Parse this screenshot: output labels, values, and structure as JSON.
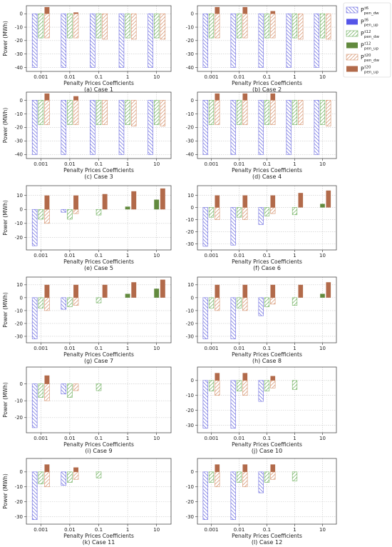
{
  "chart_data": {
    "type": "bar",
    "categories": [
      "0.001",
      "0.01",
      "0.1",
      "1",
      "10"
    ],
    "xlabel": "Penalty Prices Coefficients",
    "ylabel": "Power (MWh)",
    "legend": {
      "placement": "right",
      "entries": [
        {
          "main": "P",
          "sub": "pen_dw",
          "sup": "t6",
          "color": "#6a6ae0",
          "style": "hatch"
        },
        {
          "main": "P",
          "sub": "pen_up",
          "sup": "t6",
          "color": "#5555e8",
          "style": "solid"
        },
        {
          "main": "P",
          "sub": "pen_dw",
          "sup": "t12",
          "color": "#6bae5a",
          "style": "hatch"
        },
        {
          "main": "P",
          "sub": "pen_up",
          "sup": "t12",
          "color": "#628a3e",
          "style": "solid"
        },
        {
          "main": "P",
          "sub": "pen_dw",
          "sup": "t20",
          "color": "#d4906a",
          "style": "hatch"
        },
        {
          "main": "P",
          "sub": "pen_up",
          "sup": "t20",
          "color": "#b26a4a",
          "style": "solid"
        }
      ]
    },
    "panels": [
      {
        "caption": "(a) Case 1",
        "ylim": [
          -43,
          6
        ],
        "yticks": [
          0,
          -10,
          -20,
          -30,
          -40
        ],
        "dw6": [
          -40,
          -40,
          -40,
          -40,
          -40
        ],
        "up6": [
          0,
          0,
          0,
          0,
          0
        ],
        "dw12": [
          -18,
          -18,
          -18,
          -18,
          -18
        ],
        "up12": [
          0,
          0,
          0,
          0,
          0
        ],
        "dw20": [
          -18,
          -18,
          -19,
          -19,
          -19
        ],
        "up20": [
          5,
          1,
          0,
          0,
          0
        ]
      },
      {
        "caption": "(b) Case 2",
        "ylim": [
          -43,
          6
        ],
        "yticks": [
          0,
          -10,
          -20,
          -30,
          -40
        ],
        "dw6": [
          -40,
          -40,
          -40,
          -40,
          -40
        ],
        "up6": [
          0,
          0,
          0,
          0,
          0
        ],
        "dw12": [
          -18,
          -18,
          -18,
          -18,
          -18
        ],
        "up12": [
          0,
          0,
          0,
          0,
          0
        ],
        "dw20": [
          -18,
          -18,
          -18,
          -19,
          -19
        ],
        "up20": [
          5,
          5,
          2,
          0,
          0
        ]
      },
      {
        "caption": "(c) Case 3",
        "ylim": [
          -43,
          6
        ],
        "yticks": [
          0,
          -10,
          -20,
          -30,
          -40
        ],
        "dw6": [
          -40,
          -40,
          -40,
          -40,
          -40
        ],
        "up6": [
          0,
          0,
          0,
          0,
          0
        ],
        "dw12": [
          -18,
          -18,
          -18,
          -18,
          -18
        ],
        "up12": [
          0,
          0,
          0,
          0,
          0
        ],
        "dw20": [
          -18,
          -18,
          -18,
          -19,
          -19
        ],
        "up20": [
          5,
          3,
          0,
          0,
          0
        ]
      },
      {
        "caption": "(d) Case 4",
        "ylim": [
          -43,
          6
        ],
        "yticks": [
          0,
          -10,
          -20,
          -30,
          -40
        ],
        "dw6": [
          -40,
          -40,
          -40,
          -40,
          -40
        ],
        "up6": [
          0,
          0,
          0,
          0,
          0
        ],
        "dw12": [
          -18,
          -18,
          -18,
          -18,
          -18
        ],
        "up12": [
          0,
          0,
          0,
          0,
          0
        ],
        "dw20": [
          -18,
          -18,
          -18,
          -18,
          -19
        ],
        "up20": [
          5,
          5,
          5,
          0,
          0
        ]
      },
      {
        "caption": "(e) Case 5",
        "ylim": [
          -29,
          17
        ],
        "yticks": [
          10,
          0,
          -10,
          -20
        ],
        "dw6": [
          -26,
          -2,
          0,
          0,
          0
        ],
        "up6": [
          0,
          0,
          0,
          0,
          0
        ],
        "dw12": [
          -7,
          -7,
          -4,
          0,
          0
        ],
        "up12": [
          0,
          0,
          0,
          2,
          7
        ],
        "dw20": [
          -10,
          -3,
          0,
          0,
          0
        ],
        "up20": [
          10,
          10,
          11,
          13,
          15
        ]
      },
      {
        "caption": "(f) Case 6",
        "ylim": [
          -35,
          18
        ],
        "yticks": [
          10,
          0,
          -10,
          -20,
          -30
        ],
        "dw6": [
          -32,
          -31,
          -14,
          0,
          0
        ],
        "up6": [
          0,
          0,
          0,
          0,
          0
        ],
        "dw12": [
          -8,
          -8,
          -7,
          -6,
          0
        ],
        "up12": [
          0,
          0,
          0,
          0,
          3
        ],
        "dw20": [
          -10,
          -10,
          -5,
          0,
          0
        ],
        "up20": [
          10,
          10,
          10,
          12,
          14
        ]
      },
      {
        "caption": "(g) Case 7",
        "ylim": [
          -35,
          16
        ],
        "yticks": [
          10,
          0,
          -10,
          -20,
          -30
        ],
        "dw6": [
          -32,
          -9,
          0,
          0,
          0
        ],
        "up6": [
          0,
          0,
          0,
          0,
          0
        ],
        "dw12": [
          -8,
          -7,
          -4,
          0,
          0
        ],
        "up12": [
          0,
          0,
          0,
          3,
          7
        ],
        "dw20": [
          -10,
          -6,
          0,
          0,
          0
        ],
        "up20": [
          10,
          10,
          10,
          12,
          14
        ]
      },
      {
        "caption": "(h) Case 8",
        "ylim": [
          -35,
          16
        ],
        "yticks": [
          10,
          0,
          -10,
          -20,
          -30
        ],
        "dw6": [
          -32,
          -32,
          -14,
          0,
          0
        ],
        "up6": [
          0,
          0,
          0,
          0,
          0
        ],
        "dw12": [
          -8,
          -8,
          -7,
          -6,
          0
        ],
        "up12": [
          0,
          0,
          0,
          0,
          3
        ],
        "dw20": [
          -10,
          -10,
          -5,
          0,
          0
        ],
        "up20": [
          10,
          10,
          10,
          10,
          12
        ]
      },
      {
        "caption": "(i) Case 9",
        "ylim": [
          -29,
          10
        ],
        "yticks": [
          0,
          -10,
          -20
        ],
        "dw6": [
          -26,
          -6,
          0,
          0,
          0
        ],
        "up6": [
          0,
          0,
          0,
          0,
          0
        ],
        "dw12": [
          -8,
          -8,
          -4,
          0,
          0
        ],
        "up12": [
          0,
          0,
          0,
          0,
          0
        ],
        "dw20": [
          -10,
          -4,
          0,
          0,
          0
        ],
        "up20": [
          5,
          0,
          0,
          0,
          0
        ]
      },
      {
        "caption": "(j) Case 10",
        "ylim": [
          -35,
          9
        ],
        "yticks": [
          0,
          -10,
          -20,
          -30
        ],
        "dw6": [
          -32,
          -32,
          -14,
          0,
          0
        ],
        "up6": [
          0,
          0,
          0,
          0,
          0
        ],
        "dw12": [
          -7,
          -7,
          -7,
          -6,
          0
        ],
        "up12": [
          0,
          0,
          0,
          0,
          0
        ],
        "dw20": [
          -10,
          -10,
          -5,
          0,
          0
        ],
        "up20": [
          5,
          5,
          3,
          0,
          0
        ]
      },
      {
        "caption": "(k) Case 11",
        "ylim": [
          -35,
          9
        ],
        "yticks": [
          0,
          -10,
          -20,
          -30
        ],
        "dw6": [
          -32,
          -9,
          0,
          0,
          0
        ],
        "up6": [
          0,
          0,
          0,
          0,
          0
        ],
        "dw12": [
          -8,
          -7,
          -4,
          0,
          0
        ],
        "up12": [
          0,
          0,
          0,
          0,
          0
        ],
        "dw20": [
          -10,
          -5,
          0,
          0,
          0
        ],
        "up20": [
          5,
          3,
          0,
          0,
          0
        ]
      },
      {
        "caption": "(l) Case 12",
        "ylim": [
          -35,
          9
        ],
        "yticks": [
          0,
          -10,
          -20,
          -30
        ],
        "dw6": [
          -32,
          -32,
          -14,
          0,
          0
        ],
        "up6": [
          0,
          0,
          0,
          0,
          0
        ],
        "dw12": [
          -7,
          -7,
          -7,
          -6,
          0
        ],
        "up12": [
          0,
          0,
          0,
          0,
          0
        ],
        "dw20": [
          -10,
          -10,
          -5,
          0,
          0
        ],
        "up20": [
          5,
          5,
          5,
          0,
          0
        ]
      }
    ]
  }
}
